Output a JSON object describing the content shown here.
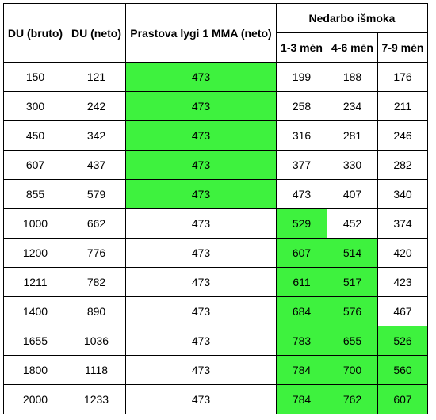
{
  "table": {
    "headers": {
      "du_bruto": "DU (bruto)",
      "du_neto": "DU (neto)",
      "prastova": "Prastova lygi 1 MMA (neto)",
      "nedarbo": "Nedarbo išmoka",
      "m13": "1-3 mėn",
      "m46": "4-6 mėn",
      "m79": "7-9 mėn"
    },
    "highlight_color": "#3ef23e",
    "rows": [
      {
        "bruto": "150",
        "neto": "121",
        "prastova": "473",
        "m13": "199",
        "m46": "188",
        "m79": "176",
        "hl": [
          false,
          false,
          false,
          true
        ]
      },
      {
        "bruto": "300",
        "neto": "242",
        "prastova": "473",
        "m13": "258",
        "m46": "234",
        "m79": "211",
        "hl": [
          false,
          false,
          false,
          true
        ]
      },
      {
        "bruto": "450",
        "neto": "342",
        "prastova": "473",
        "m13": "316",
        "m46": "281",
        "m79": "246",
        "hl": [
          false,
          false,
          false,
          true
        ]
      },
      {
        "bruto": "607",
        "neto": "437",
        "prastova": "473",
        "m13": "377",
        "m46": "330",
        "m79": "282",
        "hl": [
          false,
          false,
          false,
          true
        ]
      },
      {
        "bruto": "855",
        "neto": "579",
        "prastova": "473",
        "m13": "473",
        "m46": "407",
        "m79": "340",
        "hl": [
          false,
          false,
          false,
          true
        ]
      },
      {
        "bruto": "1000",
        "neto": "662",
        "prastova": "473",
        "m13": "529",
        "m46": "452",
        "m79": "374",
        "hl": [
          false,
          true,
          false,
          false
        ]
      },
      {
        "bruto": "1200",
        "neto": "776",
        "prastova": "473",
        "m13": "607",
        "m46": "514",
        "m79": "420",
        "hl": [
          false,
          true,
          true,
          false
        ]
      },
      {
        "bruto": "1211",
        "neto": "782",
        "prastova": "473",
        "m13": "611",
        "m46": "517",
        "m79": "423",
        "hl": [
          false,
          true,
          true,
          false
        ]
      },
      {
        "bruto": "1400",
        "neto": "890",
        "prastova": "473",
        "m13": "684",
        "m46": "576",
        "m79": "467",
        "hl": [
          false,
          true,
          true,
          false
        ]
      },
      {
        "bruto": "1655",
        "neto": "1036",
        "prastova": "473",
        "m13": "783",
        "m46": "655",
        "m79": "526",
        "hl": [
          false,
          true,
          true,
          true
        ]
      },
      {
        "bruto": "1800",
        "neto": "1118",
        "prastova": "473",
        "m13": "784",
        "m46": "700",
        "m79": "560",
        "hl": [
          false,
          true,
          true,
          true
        ]
      },
      {
        "bruto": "2000",
        "neto": "1233",
        "prastova": "473",
        "m13": "784",
        "m46": "762",
        "m79": "607",
        "hl": [
          false,
          true,
          true,
          true
        ]
      }
    ]
  }
}
